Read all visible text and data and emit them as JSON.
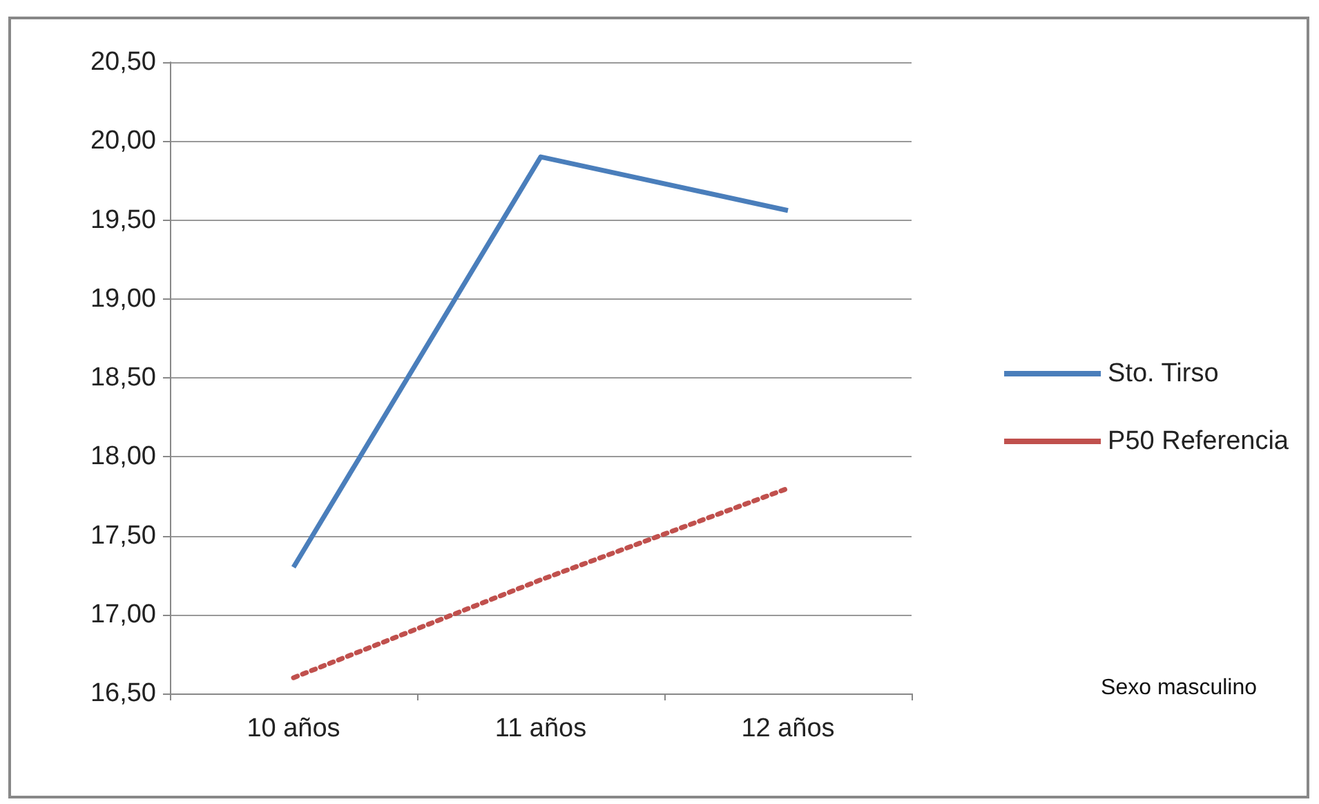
{
  "chart_data": {
    "type": "line",
    "categories": [
      "10 años",
      "11 años",
      "12 años"
    ],
    "series": [
      {
        "name": "Sto. Tirso",
        "color": "#4a7ebb",
        "line_style": "solid",
        "values": [
          17.3,
          19.9,
          19.56
        ]
      },
      {
        "name": "P50 Referencia",
        "color": "#c0504d",
        "line_style": "dotted",
        "values": [
          16.6,
          17.22,
          17.8
        ]
      }
    ],
    "ylim": [
      16.5,
      20.5
    ],
    "yticks": [
      {
        "value": 16.5,
        "label": "16,50"
      },
      {
        "value": 17,
        "label": "17,00"
      },
      {
        "value": 17.5,
        "label": "17,50"
      },
      {
        "value": 18,
        "label": "18,00"
      },
      {
        "value": 18.5,
        "label": "18,50"
      },
      {
        "value": 19,
        "label": "19,00"
      },
      {
        "value": 19.5,
        "label": "19,50"
      },
      {
        "value": 20,
        "label": "20,00"
      },
      {
        "value": 20.5,
        "label": "20,50"
      }
    ],
    "grid": "y",
    "legend": "right",
    "marker": "none",
    "annotations": [
      "Sexo masculino"
    ]
  }
}
